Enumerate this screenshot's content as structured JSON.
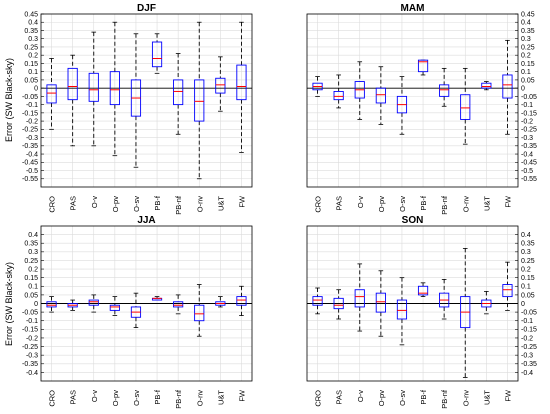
{
  "ylabel": "Error (SW Black-sky)",
  "categories": [
    "CRO",
    "PAS",
    "O-v",
    "O-pv",
    "O-sv",
    "PB-f",
    "PB-nf",
    "O-nv",
    "U&T",
    "FW"
  ],
  "colors": {
    "box": "#0000ff",
    "median": "#ff0000",
    "whisker": "#000000",
    "grid": "#dcdcdc",
    "zero": "#000000"
  },
  "chart_data": [
    {
      "type": "box",
      "title": "DJF",
      "ylim": [
        -0.6,
        0.45
      ],
      "yticks": [
        "0.45",
        "0.4",
        "0.35",
        "0.3",
        "0.25",
        "0.2",
        "0.15",
        "0.1",
        "0.05",
        "0",
        "-0.05",
        "-0.1",
        "-0.15",
        "-0.2",
        "-0.25",
        "-0.3",
        "-0.35",
        "-0.4",
        "-0.45",
        "-0.5",
        "-0.55"
      ],
      "ytick_side": "left",
      "boxes": [
        {
          "min": -0.25,
          "q1": -0.09,
          "median": -0.03,
          "q3": 0.02,
          "max": 0.18
        },
        {
          "min": -0.35,
          "q1": -0.07,
          "median": 0.01,
          "q3": 0.12,
          "max": 0.2
        },
        {
          "min": -0.35,
          "q1": -0.08,
          "median": -0.01,
          "q3": 0.09,
          "max": 0.34
        },
        {
          "min": -0.41,
          "q1": -0.1,
          "median": -0.01,
          "q3": 0.1,
          "max": 0.4
        },
        {
          "min": -0.48,
          "q1": -0.17,
          "median": -0.06,
          "q3": 0.05,
          "max": 0.33
        },
        {
          "min": 0.09,
          "q1": 0.13,
          "median": 0.18,
          "q3": 0.28,
          "max": 0.33
        },
        {
          "min": -0.28,
          "q1": -0.1,
          "median": -0.02,
          "q3": 0.05,
          "max": 0.21
        },
        {
          "min": -0.55,
          "q1": -0.2,
          "median": -0.08,
          "q3": 0.05,
          "max": 0.4
        },
        {
          "min": -0.14,
          "q1": -0.03,
          "median": 0.02,
          "q3": 0.06,
          "max": 0.19
        },
        {
          "min": -0.39,
          "q1": -0.07,
          "median": 0.01,
          "q3": 0.14,
          "max": 0.4
        }
      ]
    },
    {
      "type": "box",
      "title": "MAM",
      "ylim": [
        -0.6,
        0.45
      ],
      "yticks": [
        "0.45",
        "0.4",
        "0.35",
        "0.3",
        "0.25",
        "0.2",
        "0.15",
        "0.1",
        "0.05",
        "0",
        "-0.05",
        "-0.1",
        "-0.15",
        "-0.2",
        "-0.25",
        "-0.3",
        "-0.35",
        "-0.4",
        "-0.45",
        "-0.5",
        "-0.55"
      ],
      "ytick_side": "right",
      "boxes": [
        {
          "min": -0.05,
          "q1": -0.01,
          "median": 0.01,
          "q3": 0.03,
          "max": 0.07
        },
        {
          "min": -0.12,
          "q1": -0.07,
          "median": -0.05,
          "q3": -0.02,
          "max": 0.08
        },
        {
          "min": -0.19,
          "q1": -0.06,
          "median": -0.01,
          "q3": 0.04,
          "max": 0.16
        },
        {
          "min": -0.22,
          "q1": -0.09,
          "median": -0.04,
          "q3": 0.0,
          "max": 0.13
        },
        {
          "min": -0.28,
          "q1": -0.15,
          "median": -0.1,
          "q3": -0.05,
          "max": 0.07
        },
        {
          "min": 0.08,
          "q1": 0.1,
          "median": 0.16,
          "q3": 0.17,
          "max": 0.17
        },
        {
          "min": -0.11,
          "q1": -0.05,
          "median": -0.01,
          "q3": 0.02,
          "max": 0.12
        },
        {
          "min": -0.34,
          "q1": -0.19,
          "median": -0.12,
          "q3": -0.04,
          "max": 0.12
        },
        {
          "min": -0.01,
          "q1": 0.0,
          "median": 0.01,
          "q3": 0.03,
          "max": 0.04
        },
        {
          "min": -0.28,
          "q1": -0.06,
          "median": 0.02,
          "q3": 0.08,
          "max": 0.29
        }
      ]
    },
    {
      "type": "box",
      "title": "JJA",
      "ylim": [
        -0.45,
        0.45
      ],
      "yticks": [
        "0.4",
        "0.35",
        "0.3",
        "0.25",
        "0.2",
        "0.15",
        "0.1",
        "0.05",
        "0",
        "-0.05",
        "-0.1",
        "-0.15",
        "-0.2",
        "-0.25",
        "-0.3",
        "-0.35",
        "-0.4"
      ],
      "ytick_side": "left",
      "boxes": [
        {
          "min": -0.05,
          "q1": -0.02,
          "median": -0.01,
          "q3": 0.01,
          "max": 0.04
        },
        {
          "min": -0.04,
          "q1": -0.02,
          "median": -0.01,
          "q3": 0.0,
          "max": 0.02
        },
        {
          "min": -0.05,
          "q1": -0.01,
          "median": 0.01,
          "q3": 0.02,
          "max": 0.05
        },
        {
          "min": -0.07,
          "q1": -0.04,
          "median": -0.02,
          "q3": -0.01,
          "max": 0.04
        },
        {
          "min": -0.14,
          "q1": -0.08,
          "median": -0.05,
          "q3": -0.02,
          "max": 0.06
        },
        {
          "min": 0.02,
          "q1": 0.02,
          "median": 0.03,
          "q3": 0.03,
          "max": 0.04
        },
        {
          "min": -0.06,
          "q1": -0.02,
          "median": -0.01,
          "q3": 0.01,
          "max": 0.05
        },
        {
          "min": -0.19,
          "q1": -0.1,
          "median": -0.06,
          "q3": -0.01,
          "max": 0.11
        },
        {
          "min": -0.02,
          "q1": -0.01,
          "median": 0.0,
          "q3": 0.01,
          "max": 0.04
        },
        {
          "min": -0.07,
          "q1": -0.01,
          "median": 0.02,
          "q3": 0.04,
          "max": 0.1
        }
      ]
    },
    {
      "type": "box",
      "title": "SON",
      "ylim": [
        -0.45,
        0.45
      ],
      "yticks": [
        "0.4",
        "0.35",
        "0.3",
        "0.25",
        "0.2",
        "0.15",
        "0.1",
        "0.05",
        "0",
        "-0.05",
        "-0.1",
        "-0.15",
        "-0.2",
        "-0.25",
        "-0.3",
        "-0.35",
        "-0.4"
      ],
      "ytick_side": "right",
      "boxes": [
        {
          "min": -0.06,
          "q1": -0.01,
          "median": 0.02,
          "q3": 0.04,
          "max": 0.09
        },
        {
          "min": -0.09,
          "q1": -0.03,
          "median": -0.01,
          "q3": 0.03,
          "max": 0.08
        },
        {
          "min": -0.16,
          "q1": -0.02,
          "median": 0.04,
          "q3": 0.08,
          "max": 0.23
        },
        {
          "min": -0.19,
          "q1": -0.05,
          "median": 0.01,
          "q3": 0.06,
          "max": 0.19
        },
        {
          "min": -0.24,
          "q1": -0.09,
          "median": -0.04,
          "q3": 0.02,
          "max": 0.15
        },
        {
          "min": 0.04,
          "q1": 0.05,
          "median": 0.06,
          "q3": 0.1,
          "max": 0.12
        },
        {
          "min": -0.09,
          "q1": -0.02,
          "median": 0.02,
          "q3": 0.06,
          "max": 0.14
        },
        {
          "min": -0.43,
          "q1": -0.14,
          "median": -0.05,
          "q3": 0.04,
          "max": 0.32
        },
        {
          "min": -0.06,
          "q1": -0.02,
          "median": 0.0,
          "q3": 0.02,
          "max": 0.07
        },
        {
          "min": -0.04,
          "q1": 0.04,
          "median": 0.08,
          "q3": 0.11,
          "max": 0.24
        }
      ]
    }
  ]
}
